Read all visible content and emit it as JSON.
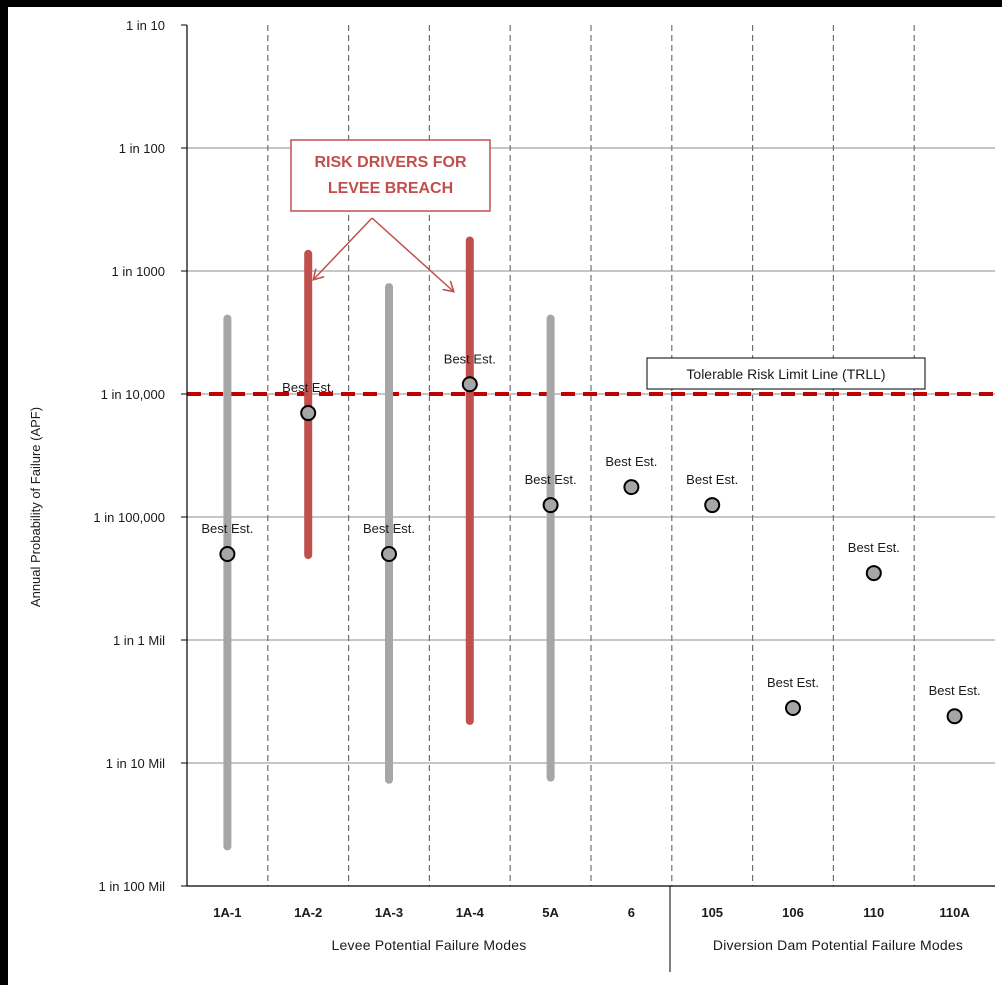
{
  "chart_data": {
    "type": "scatter",
    "ylabel": "Annual Probability of Failure (APF)",
    "y_scale": "log",
    "ylim": [
      1e-08,
      0.1
    ],
    "y_ticks": [
      {
        "value": 0.1,
        "label": "1 in 10"
      },
      {
        "value": 0.01,
        "label": "1 in 100"
      },
      {
        "value": 0.001,
        "label": "1 in 1000"
      },
      {
        "value": 0.0001,
        "label": "1 in 10,000"
      },
      {
        "value": 1e-05,
        "label": "1 in 100,000"
      },
      {
        "value": 1e-06,
        "label": "1 in 1 Mil"
      },
      {
        "value": 1e-07,
        "label": "1 in 10 Mil"
      },
      {
        "value": 1e-08,
        "label": "1 in 100 Mil"
      }
    ],
    "categories": [
      "1A-1",
      "1A-2",
      "1A-3",
      "1A-4",
      "5A",
      "6",
      "105",
      "106",
      "110",
      "110A"
    ],
    "groups": [
      {
        "label": "Levee Potential Failure Modes",
        "categories": [
          "1A-1",
          "1A-2",
          "1A-3",
          "1A-4",
          "5A",
          "6"
        ]
      },
      {
        "label": "Diversion Dam Potential Failure Modes",
        "categories": [
          "105",
          "106",
          "110",
          "110A"
        ]
      }
    ],
    "best_estimate_label": "Best Est.",
    "best_estimates": [
      5e-06,
      7e-05,
      5e-06,
      0.00012,
      1.25e-05,
      1.75e-05,
      1.25e-05,
      2.8e-07,
      3.5e-06,
      2.4e-07
    ],
    "ranges": [
      {
        "category": "1A-1",
        "low": 2.1e-08,
        "high": 0.00041,
        "color": "#a6a6a6"
      },
      {
        "category": "1A-2",
        "low": 4.9e-06,
        "high": 0.00138,
        "color": "#c0504d"
      },
      {
        "category": "1A-3",
        "low": 7.3e-08,
        "high": 0.00074,
        "color": "#a6a6a6"
      },
      {
        "category": "1A-4",
        "low": 2.2e-07,
        "high": 0.00177,
        "color": "#c0504d"
      },
      {
        "category": "5A",
        "low": 7.6e-08,
        "high": 0.00041,
        "color": "#a6a6a6"
      }
    ],
    "trll": {
      "value": 0.0001,
      "label": "Tolerable Risk Limit Line (TRLL)",
      "color": "#c00000"
    },
    "annotation": {
      "line1": "RISK DRIVERS FOR",
      "line2": "LEVEE BREACH",
      "targets": [
        "1A-2",
        "1A-4"
      ],
      "color": "#c0504d"
    },
    "grid": true
  }
}
